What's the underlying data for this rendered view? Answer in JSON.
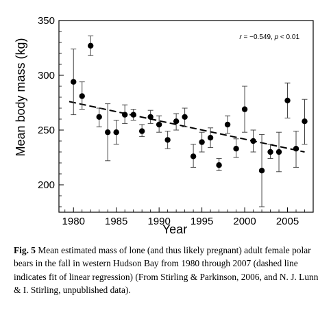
{
  "chart_data": {
    "type": "scatter",
    "xlabel": "Year",
    "ylabel": "Mean body mass (kg)",
    "xlim": [
      1978.3,
      2008.0
    ],
    "ylim": [
      175,
      350
    ],
    "x_ticks": [
      1980,
      1985,
      1990,
      1995,
      2000,
      2005
    ],
    "y_ticks": [
      200,
      250,
      300,
      350
    ],
    "annotation": {
      "r_label": "r",
      "r_value": " = −0.549, ",
      "p_label": "p",
      "p_value": " < 0.01"
    },
    "points": [
      {
        "x": 1980,
        "y": 294,
        "lo": 264,
        "hi": 324
      },
      {
        "x": 1981,
        "y": 281,
        "lo": 269,
        "hi": 294
      },
      {
        "x": 1982,
        "y": 327,
        "lo": 318,
        "hi": 336
      },
      {
        "x": 1983,
        "y": 262,
        "lo": 253,
        "hi": 270
      },
      {
        "x": 1984,
        "y": 248,
        "lo": 222,
        "hi": 274
      },
      {
        "x": 1985,
        "y": 248,
        "lo": 237,
        "hi": 259
      },
      {
        "x": 1986,
        "y": 264,
        "lo": 256,
        "hi": 273
      },
      {
        "x": 1987,
        "y": 264,
        "lo": 259,
        "hi": 269
      },
      {
        "x": 1988,
        "y": 249,
        "lo": 244,
        "hi": 255
      },
      {
        "x": 1989,
        "y": 262,
        "lo": 256,
        "hi": 268
      },
      {
        "x": 1990,
        "y": 255,
        "lo": 248,
        "hi": 263
      },
      {
        "x": 1991,
        "y": 241,
        "lo": 233,
        "hi": 249
      },
      {
        "x": 1992,
        "y": 258,
        "lo": 250,
        "hi": 265
      },
      {
        "x": 1993,
        "y": 262,
        "lo": 253,
        "hi": 270
      },
      {
        "x": 1994,
        "y": 226,
        "lo": 216,
        "hi": 237
      },
      {
        "x": 1995,
        "y": 239,
        "lo": 230,
        "hi": 248
      },
      {
        "x": 1996,
        "y": 243,
        "lo": 234,
        "hi": 252
      },
      {
        "x": 1997,
        "y": 218,
        "lo": 213,
        "hi": 224
      },
      {
        "x": 1998,
        "y": 255,
        "lo": 247,
        "hi": 263
      },
      {
        "x": 1999,
        "y": 233,
        "lo": 225,
        "hi": 242
      },
      {
        "x": 2000,
        "y": 269,
        "lo": 248,
        "hi": 290
      },
      {
        "x": 2001,
        "y": 240,
        "lo": 230,
        "hi": 250
      },
      {
        "x": 2002,
        "y": 213,
        "lo": 180,
        "hi": 246
      },
      {
        "x": 2003,
        "y": 230,
        "lo": 224,
        "hi": 237
      },
      {
        "x": 2004,
        "y": 230,
        "lo": 212,
        "hi": 248
      },
      {
        "x": 2005,
        "y": 277,
        "lo": 261,
        "hi": 293
      },
      {
        "x": 2006,
        "y": 233,
        "lo": 216,
        "hi": 249
      },
      {
        "x": 2007,
        "y": 258,
        "lo": 237,
        "hi": 278
      }
    ],
    "regression": {
      "x0": 1979.5,
      "y0": 276,
      "x1": 2007.0,
      "y1": 230
    }
  },
  "caption": {
    "label": "Fig. 5",
    "text": "  Mean estimated mass of lone (and thus likely pregnant) adult female polar bears in the fall in western Hudson Bay from 1980 through 2007 (dashed line indicates fit of linear regression) (From Stirling & Parkinson, 2006, and N. J. Lunn & I. Stirling, unpublished data)."
  }
}
